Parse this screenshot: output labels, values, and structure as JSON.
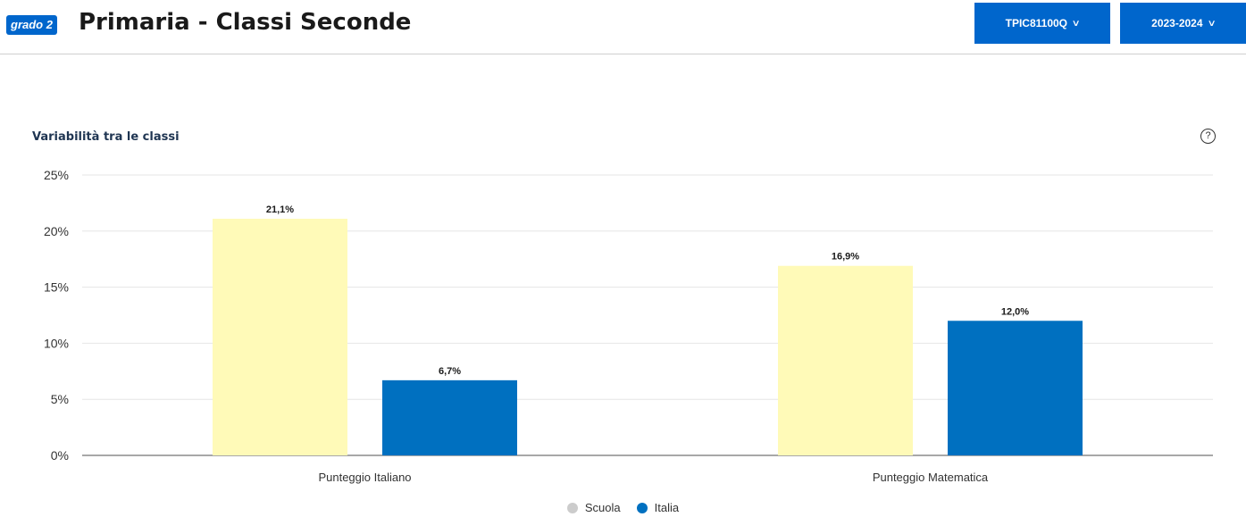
{
  "header": {
    "grade_badge": "grado 2",
    "title": "Primaria - Classi Seconde",
    "school_selector": {
      "label": "TPIC81100Q"
    },
    "year_selector": {
      "label": "2023-2024"
    },
    "accent_color": "#0066cc"
  },
  "chart": {
    "help_icon": "question-circle-icon"
  },
  "chart_data": {
    "type": "bar",
    "title": "Variabilità tra le classi",
    "categories": [
      "Punteggio Italiano",
      "Punteggio Matematica"
    ],
    "series": [
      {
        "name": "Scuola",
        "values": [
          21.1,
          16.9
        ],
        "labels": [
          "21,1%",
          "16,9%"
        ],
        "color": "#fffab8",
        "legend_color": "#cccccc"
      },
      {
        "name": "Italia",
        "values": [
          6.7,
          12.0
        ],
        "labels": [
          "6,7%",
          "12,0%"
        ],
        "color": "#0070c0",
        "legend_color": "#0070c0"
      }
    ],
    "ylim": [
      0,
      25
    ],
    "yticks": [
      0,
      5,
      10,
      15,
      20,
      25
    ],
    "ytick_labels": [
      "0%",
      "5%",
      "10%",
      "15%",
      "20%",
      "25%"
    ],
    "grid": true,
    "legend": "bottom-center"
  }
}
